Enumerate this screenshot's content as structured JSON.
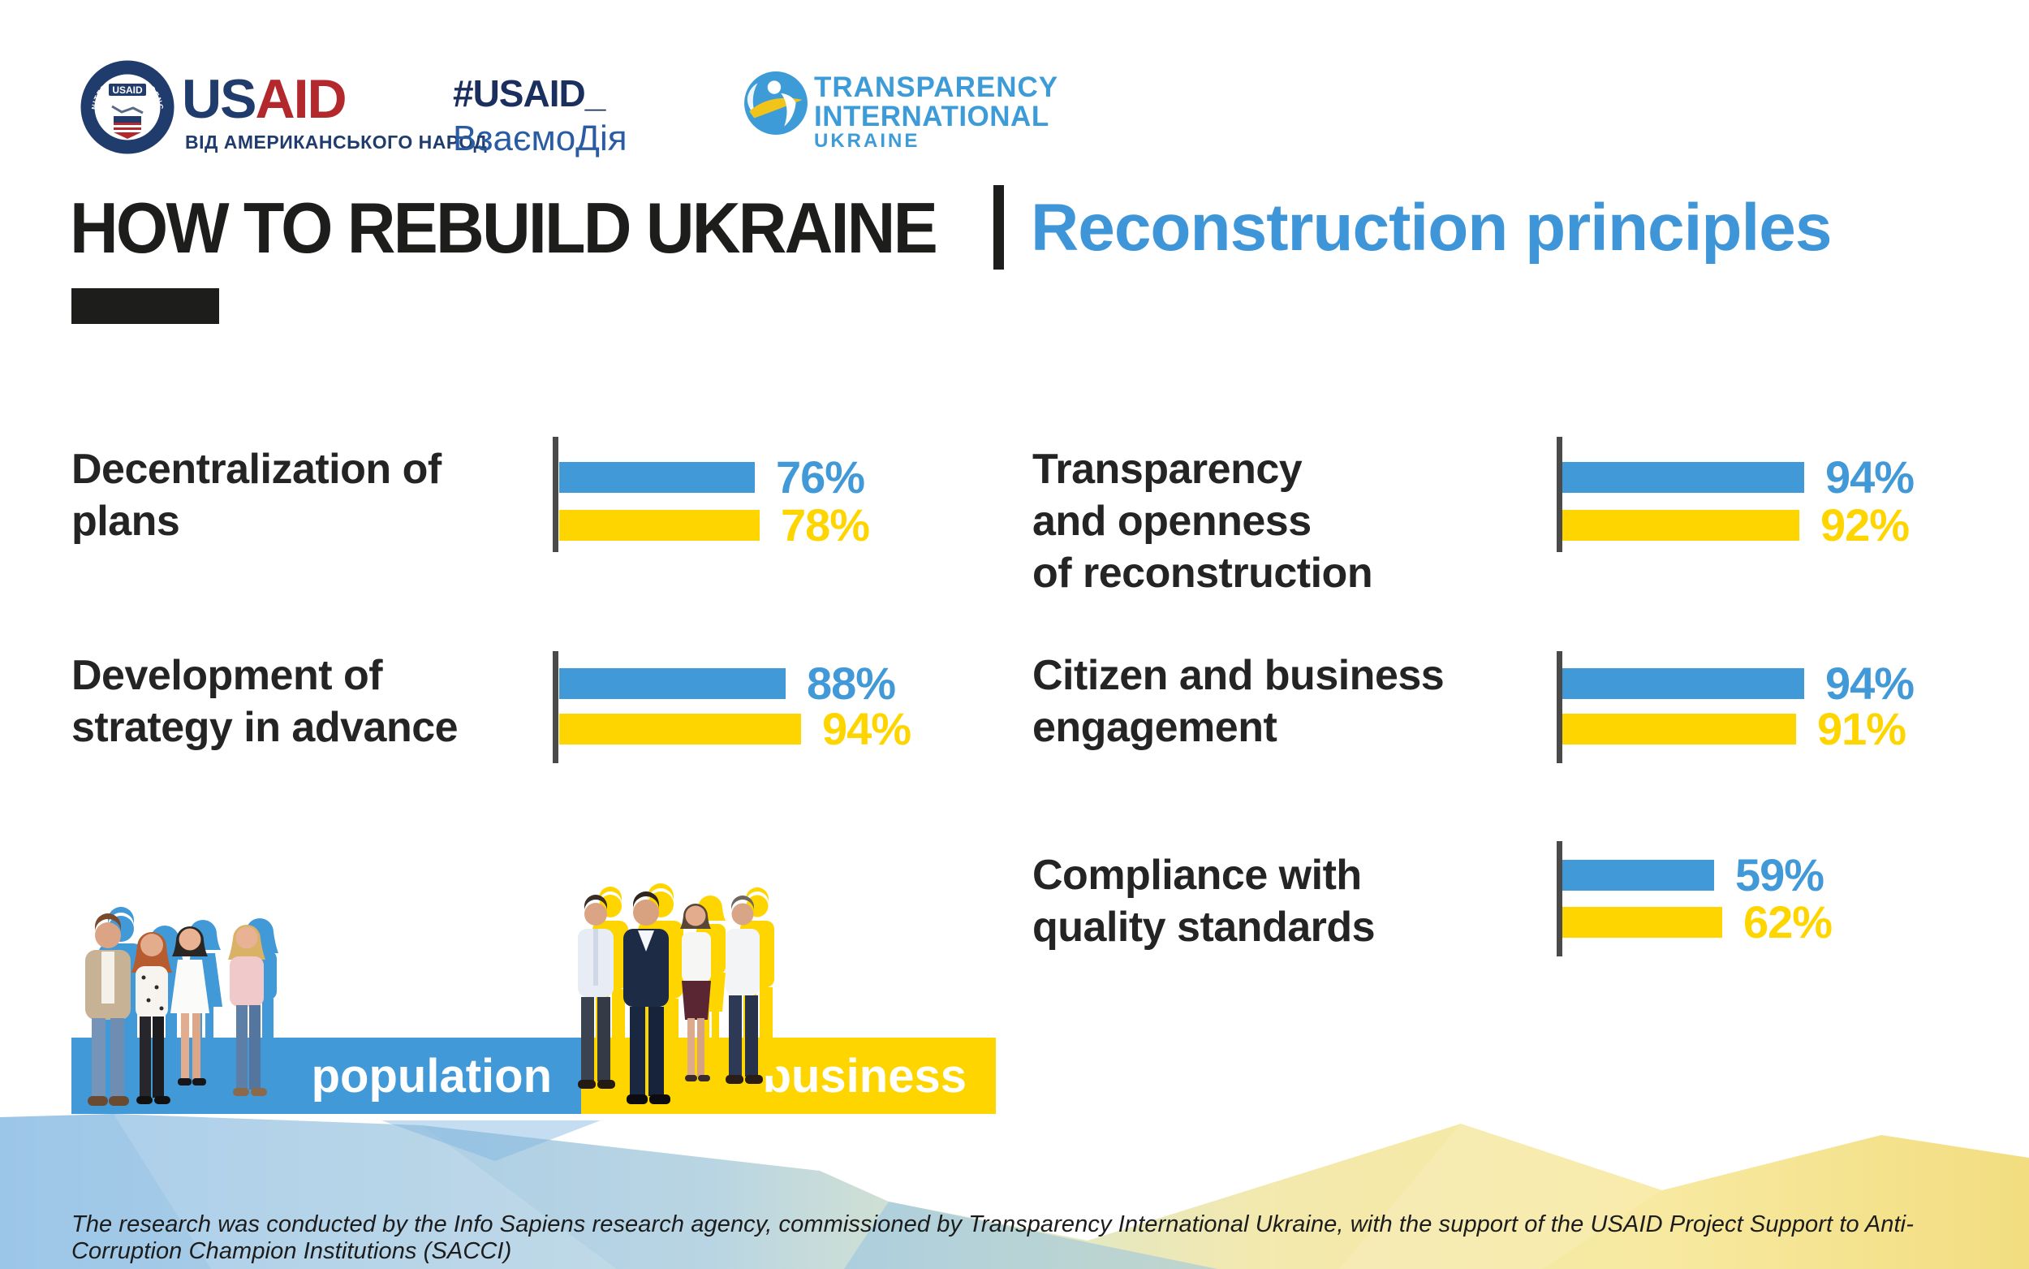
{
  "title": {
    "main": "HOW TO REBUILD UKRAINE",
    "accent": "Reconstruction principles"
  },
  "header": {
    "usaid": {
      "seal_top": "UNITED STATES AGENCY",
      "seal_bottom": "INTERNATIONAL DEVELOPMENT",
      "seal_word": "USAID",
      "word_us": "US",
      "word_aid": "AID",
      "tagline": "ВІД АМЕРИКАНСЬКОГО НАРОД"
    },
    "hashtag": {
      "line1": "#USAID_",
      "line2": "ВзаємоДія"
    },
    "transparency": {
      "line1": "TRANSPARENCY",
      "line2": "INTERNATIONAL",
      "line3": "UKRAINE"
    }
  },
  "chart_data": {
    "type": "bar",
    "orientation": "horizontal",
    "unit": "percent",
    "xlim": [
      0,
      100
    ],
    "grid": false,
    "legend_position": "bottom-left",
    "categories": [
      "Decentralization of plans",
      "Development of strategy in advance",
      "Transparency and openness of reconstruction",
      "Citizen and business engagement",
      "Compliance with quality standards"
    ],
    "categories_lines": [
      [
        "Decentralization of",
        "plans"
      ],
      [
        "Development of",
        "strategy in advance"
      ],
      [
        "Transparency",
        "and openness",
        "of reconstruction"
      ],
      [
        "Citizen and business",
        "engagement"
      ],
      [
        "Compliance with",
        "quality standards"
      ]
    ],
    "series": [
      {
        "name": "population",
        "color": "#4299D8",
        "values": [
          76,
          88,
          94,
          94,
          59
        ],
        "labels": [
          "76%",
          "88%",
          "94%",
          "94%",
          "59%"
        ]
      },
      {
        "name": "business",
        "color": "#FFD500",
        "values": [
          78,
          94,
          92,
          91,
          62
        ],
        "labels": [
          "78%",
          "94%",
          "92%",
          "91%",
          "62%"
        ]
      }
    ]
  },
  "legend": {
    "population": "population",
    "business": "business"
  },
  "footer": {
    "text": "The research was conducted by the Info Sapiens research agency, commissioned by Transparency International Ukraine, with the support of the USAID Project Support to Anti-Corruption Champion Institutions (SACCI)"
  },
  "colors": {
    "blue": "#4299D8",
    "yellow": "#FFD500",
    "title_accent": "#3E96D9",
    "navy": "#1F3C6D",
    "usaid_red": "#B3282D",
    "ink": "#1D1D1B",
    "axis": "#4A4A4A"
  }
}
